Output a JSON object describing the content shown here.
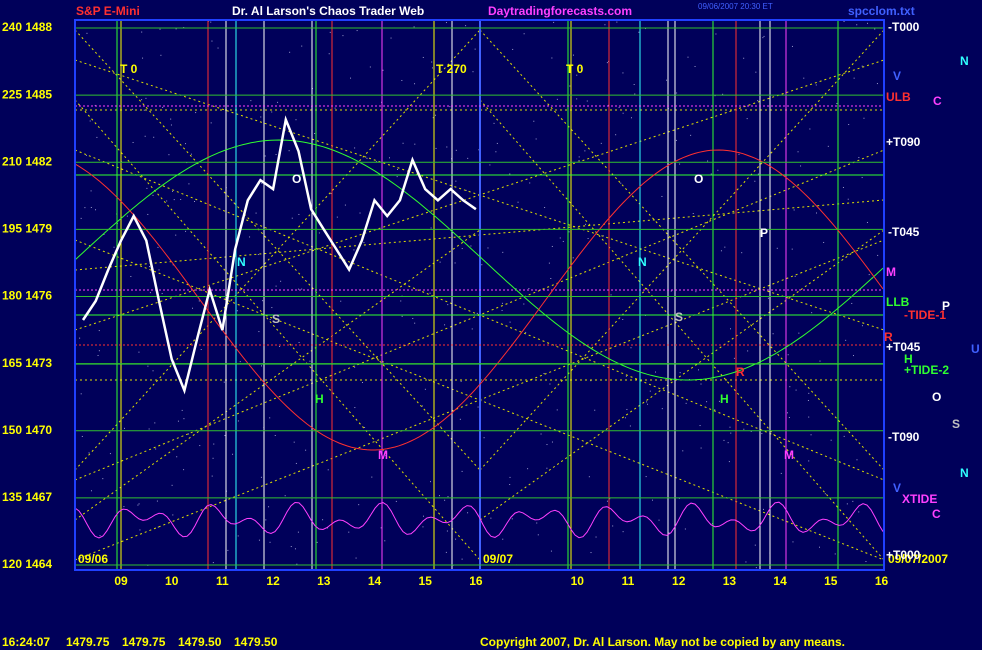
{
  "chart_data": {
    "type": "line",
    "title": "Dr. Al Larson's Chaos Trader Web",
    "symbol": "S&P E-Mini",
    "site": "Daytradingforecasts.com",
    "file": "spcclom.txt",
    "timestamp": "09/06/2007 20:30 ET",
    "x": [
      8.25,
      8.5,
      8.75,
      9,
      9.25,
      9.5,
      9.75,
      10,
      10.25,
      10.5,
      10.75,
      11,
      11.25,
      11.5,
      11.75,
      12,
      12.25,
      12.5,
      12.75,
      13,
      13.25,
      13.5,
      13.75,
      14,
      14.25,
      14.5,
      14.75,
      15,
      15.25,
      15.5,
      15.75,
      16
    ],
    "series": [
      {
        "color": "#ffffff",
        "values": [
          1474.95,
          1475.8,
          1477.2,
          1478.5,
          1479.6,
          1478.5,
          1475.8,
          1473.2,
          1471.8,
          1474.1,
          1476.3,
          1474.5,
          1478.1,
          1480.3,
          1481.2,
          1480.8,
          1483.9,
          1482.5,
          1479.9,
          1479,
          1478.1,
          1477.2,
          1478.5,
          1480.3,
          1479.6,
          1480.3,
          1482.1,
          1480.8,
          1480.3,
          1480.8,
          1480.3,
          1479.9
        ]
      }
    ],
    "ylim": [
      1464,
      1488
    ],
    "yticks": [
      {
        "value": 1488,
        "label": "240 1488"
      },
      {
        "value": 1485,
        "label": "225 1485"
      },
      {
        "value": 1482,
        "label": "210 1482"
      },
      {
        "value": 1479,
        "label": "195 1479"
      },
      {
        "value": 1476,
        "label": "180 1476"
      },
      {
        "value": 1473,
        "label": "165 1473"
      },
      {
        "value": 1470,
        "label": "150 1470"
      },
      {
        "value": 1467,
        "label": "135 1467"
      },
      {
        "value": 1464,
        "label": "120 1464"
      }
    ],
    "grid": true,
    "xtick_labels": [
      "09",
      "10",
      "11",
      "12",
      "13",
      "14",
      "15",
      "16",
      "10",
      "11",
      "12",
      "13",
      "14",
      "15",
      "16"
    ],
    "dates": [
      "09/06",
      "09/07",
      "09/07/2007"
    ],
    "annotations": [
      {
        "text": "T 0",
        "color": "#ffff00"
      },
      {
        "text": "T 270",
        "color": "#ffff00"
      },
      {
        "text": "T 0",
        "color": "#ffff00"
      },
      {
        "text": "-T000",
        "color": "#ffffff"
      },
      {
        "text": "V",
        "color": "#4060ff"
      },
      {
        "text": "ULB",
        "color": "#ff3030"
      },
      {
        "text": "C",
        "color": "#ff40ff"
      },
      {
        "text": "+T090",
        "color": "#ffffff"
      },
      {
        "text": "-T045",
        "color": "#ffffff"
      },
      {
        "text": "M",
        "color": "#ff40ff"
      },
      {
        "text": "LLB",
        "color": "#30ff30"
      },
      {
        "text": "P",
        "color": "#ffffff"
      },
      {
        "text": "-TIDE-1",
        "color": "#ff3030"
      },
      {
        "text": "R",
        "color": "#ff3030"
      },
      {
        "text": "+T045",
        "color": "#ffffff"
      },
      {
        "text": "H",
        "color": "#30ff30"
      },
      {
        "text": "U",
        "color": "#4060ff"
      },
      {
        "text": "+TIDE-2",
        "color": "#30ff30"
      },
      {
        "text": "O",
        "color": "#ffffff"
      },
      {
        "text": "S",
        "color": "#c0c0c0"
      },
      {
        "text": "-T090",
        "color": "#ffffff"
      },
      {
        "text": "N",
        "color": "#30ffff"
      },
      {
        "text": "V",
        "color": "#4060ff"
      },
      {
        "text": "XTIDE",
        "color": "#ff40ff"
      },
      {
        "text": "C",
        "color": "#ff40ff"
      },
      {
        "text": "+T000",
        "color": "#ffffff"
      },
      {
        "text": "N",
        "color": "#30ffff"
      },
      {
        "text": "O",
        "color": "#ffffff"
      },
      {
        "text": "N",
        "color": "#30ffff"
      },
      {
        "text": "S",
        "color": "#c0c0c0"
      },
      {
        "text": "H",
        "color": "#30ff30"
      },
      {
        "text": "M",
        "color": "#ff40ff"
      },
      {
        "text": "O",
        "color": "#ffffff"
      },
      {
        "text": "N",
        "color": "#30ffff"
      },
      {
        "text": "S",
        "color": "#c0c0c0"
      },
      {
        "text": "H",
        "color": "#30ff30"
      },
      {
        "text": "M",
        "color": "#ff40ff"
      },
      {
        "text": "P",
        "color": "#ffffff"
      },
      {
        "text": "R",
        "color": "#ff3030"
      }
    ],
    "status_time": "16:24:07",
    "quote": [
      "1479.75",
      "1479.75",
      "1479.50",
      "1479.50"
    ],
    "copyright": "Copyright 2007, Dr. Al Larson. May not be copied by any means."
  }
}
